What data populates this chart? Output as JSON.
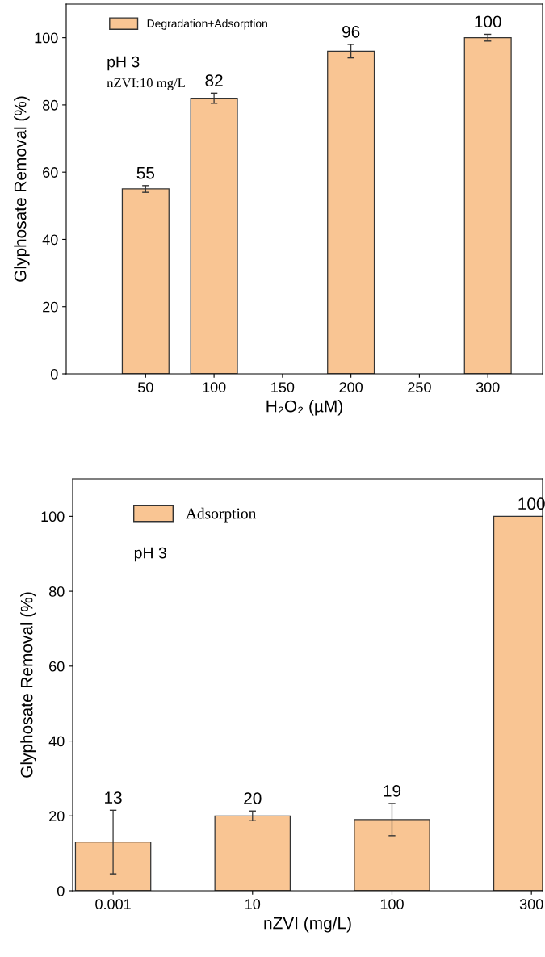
{
  "chart_data": [
    {
      "type": "bar",
      "x": [
        50,
        100,
        200,
        300
      ],
      "xlabel": "H₂O₂ (µM)",
      "ylabel": "Glyphosate Removal (%)",
      "series": [
        {
          "name": "Degradation+Adsorption",
          "color": "#f9c593",
          "values": [
            55,
            82,
            96,
            100
          ],
          "errors": [
            1,
            1.5,
            2,
            1
          ]
        }
      ],
      "xlim": [
        -8,
        340
      ],
      "xticks": [
        50,
        100,
        150,
        200,
        250,
        300
      ],
      "ylim": [
        0,
        110
      ],
      "yticks": [
        0,
        20,
        40,
        60,
        80,
        100
      ],
      "data_labels": true,
      "grid": false,
      "legend": "top left",
      "annotations": [
        "pH 3",
        "nZVI:10 mg/L"
      ]
    },
    {
      "type": "bar",
      "categories": [
        "0.001",
        "10",
        "100",
        "300"
      ],
      "xlabel": "nZVI (mg/L)",
      "ylabel": "Glyphosate Removal (%)",
      "series": [
        {
          "name": "Adsorption",
          "color": "#f9c593",
          "values": [
            13,
            20,
            19,
            100
          ],
          "errors": [
            8.5,
            1.3,
            4.3,
            null
          ]
        }
      ],
      "ylim": [
        0,
        110
      ],
      "yticks": [
        0,
        20,
        40,
        60,
        80,
        100
      ],
      "data_labels": true,
      "grid": false,
      "legend": "top left",
      "annotations": [
        "pH 3"
      ]
    }
  ]
}
